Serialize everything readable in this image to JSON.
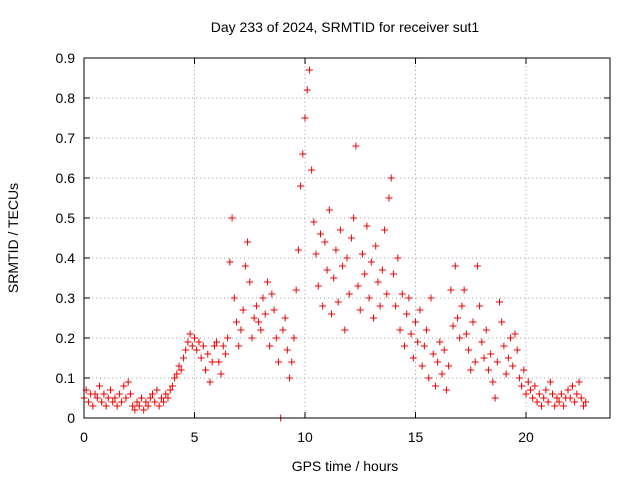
{
  "chart_data": {
    "type": "scatter",
    "title": "Day 233 of 2024, SRMTID for receiver sut1",
    "xlabel": "GPS time / hours",
    "ylabel": "SRMTID / TECUs",
    "xlim": [
      0,
      23.8
    ],
    "ylim": [
      0,
      0.9
    ],
    "xticks": [
      0,
      5,
      10,
      15,
      20
    ],
    "yticks": [
      0,
      0.1,
      0.2,
      0.3,
      0.4,
      0.5,
      0.6,
      0.7,
      0.8,
      0.9
    ],
    "xtick_labels": [
      "0",
      "5",
      "10",
      "15",
      "20"
    ],
    "ytick_labels": [
      "0",
      "0.1",
      "0.2",
      "0.3",
      "0.4",
      "0.5",
      "0.6",
      "0.7",
      "0.8",
      "0.9"
    ],
    "grid": true,
    "marker": "+",
    "color": "#ee0000",
    "series": [
      {
        "name": "sut1",
        "points": [
          [
            0.0,
            0.05
          ],
          [
            0.1,
            0.07
          ],
          [
            0.2,
            0.04
          ],
          [
            0.3,
            0.06
          ],
          [
            0.4,
            0.03
          ],
          [
            0.5,
            0.06
          ],
          [
            0.6,
            0.05
          ],
          [
            0.7,
            0.08
          ],
          [
            0.8,
            0.04
          ],
          [
            0.9,
            0.06
          ],
          [
            1.0,
            0.03
          ],
          [
            1.1,
            0.05
          ],
          [
            1.2,
            0.07
          ],
          [
            1.3,
            0.04
          ],
          [
            1.4,
            0.05
          ],
          [
            1.5,
            0.03
          ],
          [
            1.6,
            0.06
          ],
          [
            1.7,
            0.04
          ],
          [
            1.8,
            0.08
          ],
          [
            1.9,
            0.05
          ],
          [
            2.0,
            0.09
          ],
          [
            2.1,
            0.06
          ],
          [
            2.2,
            0.03
          ],
          [
            2.3,
            0.02
          ],
          [
            2.4,
            0.04
          ],
          [
            2.5,
            0.03
          ],
          [
            2.6,
            0.05
          ],
          [
            2.7,
            0.02
          ],
          [
            2.8,
            0.04
          ],
          [
            2.9,
            0.03
          ],
          [
            3.0,
            0.05
          ],
          [
            3.1,
            0.06
          ],
          [
            3.2,
            0.04
          ],
          [
            3.3,
            0.07
          ],
          [
            3.4,
            0.03
          ],
          [
            3.5,
            0.05
          ],
          [
            3.6,
            0.04
          ],
          [
            3.7,
            0.06
          ],
          [
            3.8,
            0.05
          ],
          [
            3.9,
            0.07
          ],
          [
            4.0,
            0.08
          ],
          [
            4.1,
            0.1
          ],
          [
            4.2,
            0.11
          ],
          [
            4.3,
            0.13
          ],
          [
            4.4,
            0.12
          ],
          [
            4.5,
            0.15
          ],
          [
            4.6,
            0.17
          ],
          [
            4.7,
            0.19
          ],
          [
            4.8,
            0.21
          ],
          [
            4.9,
            0.18
          ],
          [
            5.0,
            0.2
          ],
          [
            5.1,
            0.17
          ],
          [
            5.2,
            0.19
          ],
          [
            5.3,
            0.15
          ],
          [
            5.4,
            0.18
          ],
          [
            5.5,
            0.12
          ],
          [
            5.6,
            0.16
          ],
          [
            5.7,
            0.09
          ],
          [
            5.8,
            0.14
          ],
          [
            5.9,
            0.18
          ],
          [
            6.0,
            0.19
          ],
          [
            6.1,
            0.14
          ],
          [
            6.2,
            0.11
          ],
          [
            6.3,
            0.18
          ],
          [
            6.4,
            0.16
          ],
          [
            6.5,
            0.2
          ],
          [
            6.6,
            0.39
          ],
          [
            6.7,
            0.5
          ],
          [
            6.8,
            0.3
          ],
          [
            6.9,
            0.24
          ],
          [
            7.0,
            0.18
          ],
          [
            7.1,
            0.22
          ],
          [
            7.2,
            0.27
          ],
          [
            7.3,
            0.38
          ],
          [
            7.4,
            0.44
          ],
          [
            7.5,
            0.34
          ],
          [
            7.6,
            0.2
          ],
          [
            7.7,
            0.25
          ],
          [
            7.8,
            0.28
          ],
          [
            7.9,
            0.24
          ],
          [
            8.0,
            0.22
          ],
          [
            8.1,
            0.3
          ],
          [
            8.2,
            0.26
          ],
          [
            8.3,
            0.34
          ],
          [
            8.4,
            0.18
          ],
          [
            8.5,
            0.31
          ],
          [
            8.6,
            0.27
          ],
          [
            8.7,
            0.2
          ],
          [
            8.8,
            0.14
          ],
          [
            8.9,
            0.0
          ],
          [
            9.0,
            0.22
          ],
          [
            9.1,
            0.25
          ],
          [
            9.2,
            0.17
          ],
          [
            9.3,
            0.1
          ],
          [
            9.4,
            0.14
          ],
          [
            9.5,
            0.2
          ],
          [
            9.6,
            0.32
          ],
          [
            9.7,
            0.42
          ],
          [
            9.8,
            0.58
          ],
          [
            9.9,
            0.66
          ],
          [
            10.0,
            0.75
          ],
          [
            10.1,
            0.82
          ],
          [
            10.2,
            0.87
          ],
          [
            10.3,
            0.62
          ],
          [
            10.4,
            0.49
          ],
          [
            10.5,
            0.41
          ],
          [
            10.6,
            0.33
          ],
          [
            10.7,
            0.46
          ],
          [
            10.8,
            0.28
          ],
          [
            10.9,
            0.44
          ],
          [
            11.0,
            0.37
          ],
          [
            11.1,
            0.52
          ],
          [
            11.2,
            0.26
          ],
          [
            11.3,
            0.35
          ],
          [
            11.4,
            0.42
          ],
          [
            11.5,
            0.29
          ],
          [
            11.6,
            0.47
          ],
          [
            11.7,
            0.38
          ],
          [
            11.8,
            0.22
          ],
          [
            11.9,
            0.4
          ],
          [
            12.0,
            0.31
          ],
          [
            12.1,
            0.45
          ],
          [
            12.2,
            0.5
          ],
          [
            12.3,
            0.68
          ],
          [
            12.4,
            0.33
          ],
          [
            12.5,
            0.27
          ],
          [
            12.6,
            0.41
          ],
          [
            12.7,
            0.36
          ],
          [
            12.8,
            0.48
          ],
          [
            12.9,
            0.3
          ],
          [
            13.0,
            0.39
          ],
          [
            13.1,
            0.25
          ],
          [
            13.2,
            0.43
          ],
          [
            13.3,
            0.34
          ],
          [
            13.4,
            0.28
          ],
          [
            13.5,
            0.37
          ],
          [
            13.6,
            0.47
          ],
          [
            13.7,
            0.31
          ],
          [
            13.8,
            0.55
          ],
          [
            13.9,
            0.6
          ],
          [
            14.0,
            0.36
          ],
          [
            14.1,
            0.28
          ],
          [
            14.2,
            0.4
          ],
          [
            14.3,
            0.22
          ],
          [
            14.4,
            0.31
          ],
          [
            14.5,
            0.18
          ],
          [
            14.6,
            0.26
          ],
          [
            14.7,
            0.3
          ],
          [
            14.8,
            0.21
          ],
          [
            14.9,
            0.15
          ],
          [
            15.0,
            0.24
          ],
          [
            15.1,
            0.19
          ],
          [
            15.2,
            0.27
          ],
          [
            15.3,
            0.13
          ],
          [
            15.4,
            0.18
          ],
          [
            15.5,
            0.22
          ],
          [
            15.6,
            0.1
          ],
          [
            15.7,
            0.3
          ],
          [
            15.8,
            0.16
          ],
          [
            15.9,
            0.08
          ],
          [
            16.0,
            0.14
          ],
          [
            16.1,
            0.19
          ],
          [
            16.2,
            0.11
          ],
          [
            16.3,
            0.17
          ],
          [
            16.4,
            0.07
          ],
          [
            16.5,
            0.13
          ],
          [
            16.6,
            0.32
          ],
          [
            16.7,
            0.23
          ],
          [
            16.8,
            0.38
          ],
          [
            16.9,
            0.25
          ],
          [
            17.0,
            0.2
          ],
          [
            17.1,
            0.28
          ],
          [
            17.2,
            0.32
          ],
          [
            17.3,
            0.21
          ],
          [
            17.4,
            0.17
          ],
          [
            17.5,
            0.12
          ],
          [
            17.6,
            0.24
          ],
          [
            17.7,
            0.14
          ],
          [
            17.8,
            0.38
          ],
          [
            17.9,
            0.28
          ],
          [
            18.0,
            0.19
          ],
          [
            18.1,
            0.15
          ],
          [
            18.2,
            0.22
          ],
          [
            18.3,
            0.12
          ],
          [
            18.4,
            0.16
          ],
          [
            18.5,
            0.09
          ],
          [
            18.6,
            0.05
          ],
          [
            18.7,
            0.14
          ],
          [
            18.8,
            0.29
          ],
          [
            18.9,
            0.24
          ],
          [
            19.0,
            0.18
          ],
          [
            19.1,
            0.11
          ],
          [
            19.2,
            0.15
          ],
          [
            19.3,
            0.2
          ],
          [
            19.4,
            0.13
          ],
          [
            19.5,
            0.21
          ],
          [
            19.6,
            0.17
          ],
          [
            19.7,
            0.1
          ],
          [
            19.8,
            0.08
          ],
          [
            19.9,
            0.12
          ],
          [
            20.0,
            0.06
          ],
          [
            20.1,
            0.09
          ],
          [
            20.2,
            0.07
          ],
          [
            20.3,
            0.05
          ],
          [
            20.4,
            0.08
          ],
          [
            20.5,
            0.04
          ],
          [
            20.6,
            0.06
          ],
          [
            20.7,
            0.03
          ],
          [
            20.8,
            0.05
          ],
          [
            20.9,
            0.07
          ],
          [
            21.0,
            0.04
          ],
          [
            21.1,
            0.09
          ],
          [
            21.2,
            0.06
          ],
          [
            21.3,
            0.03
          ],
          [
            21.4,
            0.05
          ],
          [
            21.5,
            0.04
          ],
          [
            21.6,
            0.06
          ],
          [
            21.7,
            0.03
          ],
          [
            21.8,
            0.05
          ],
          [
            21.9,
            0.07
          ],
          [
            22.0,
            0.05
          ],
          [
            22.1,
            0.08
          ],
          [
            22.2,
            0.04
          ],
          [
            22.3,
            0.06
          ],
          [
            22.4,
            0.09
          ],
          [
            22.5,
            0.05
          ],
          [
            22.6,
            0.03
          ],
          [
            22.7,
            0.04
          ]
        ]
      }
    ]
  }
}
